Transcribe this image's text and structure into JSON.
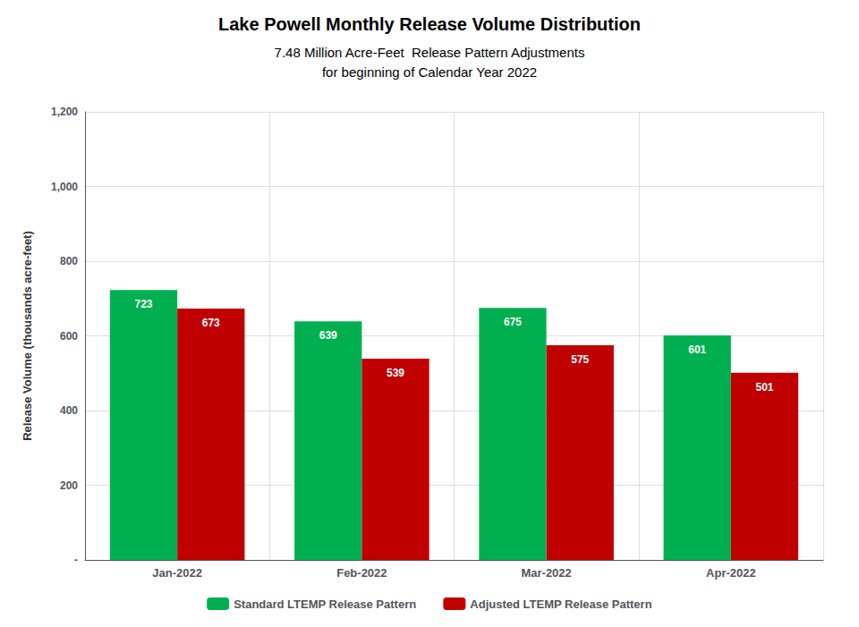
{
  "chart_data": {
    "type": "bar",
    "title": "Lake Powell Monthly Release Volume Distribution",
    "subtitle": [
      "7.48 Million Acre-Feet  Release Pattern Adjustments",
      "for beginning of Calendar Year 2022"
    ],
    "ylabel": "Release Volume (thousands acre-feet)",
    "categories": [
      "Jan-2022",
      "Feb-2022",
      "Mar-2022",
      "Apr-2022"
    ],
    "series": [
      {
        "name": "Standard LTEMP Release Pattern",
        "color": "#00B050",
        "values": [
          723,
          639,
          675,
          601
        ]
      },
      {
        "name": "Adjusted LTEMP Release Pattern",
        "color": "#C00000",
        "values": [
          673,
          539,
          575,
          501
        ]
      }
    ],
    "ylim": [
      0,
      1200
    ],
    "yticks": [
      {
        "value": 0,
        "label": "-"
      },
      200,
      400,
      600,
      800,
      {
        "value": 1000,
        "label": "1,000"
      },
      {
        "value": 1200,
        "label": "1,200"
      }
    ],
    "grid": true,
    "legend": "bottom",
    "data_labels": true
  }
}
